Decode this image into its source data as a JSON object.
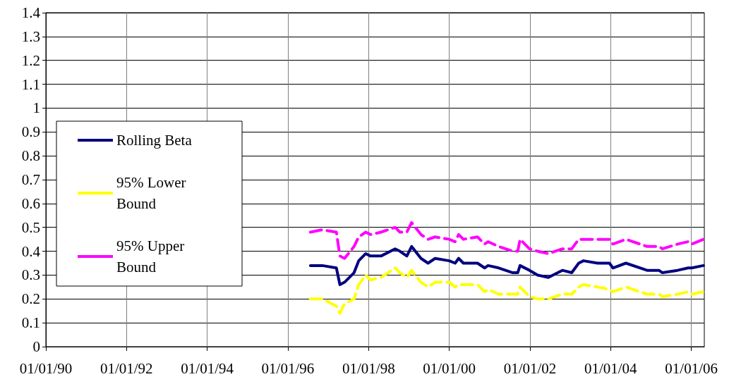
{
  "chart_data": {
    "type": "line",
    "xlim": [
      "1990-01-01",
      "2006-04-28"
    ],
    "xticks": [
      {
        "value": "1990-01-01",
        "label": "01/01/90"
      },
      {
        "value": "1992-01-01",
        "label": "01/01/92"
      },
      {
        "value": "1994-01-01",
        "label": "01/01/94"
      },
      {
        "value": "1996-01-01",
        "label": "01/01/96"
      },
      {
        "value": "1998-01-01",
        "label": "01/01/98"
      },
      {
        "value": "2000-01-01",
        "label": "01/01/00"
      },
      {
        "value": "2002-01-01",
        "label": "01/01/02"
      },
      {
        "value": "2004-01-01",
        "label": "01/01/04"
      },
      {
        "value": "2006-01-01",
        "label": "01/01/06"
      }
    ],
    "ylim": [
      0,
      1.4
    ],
    "yticks": [
      0,
      0.1,
      0.2,
      0.3,
      0.4,
      0.5,
      0.6,
      0.7,
      0.8,
      0.9,
      1,
      1.1,
      1.2,
      1.3,
      1.4
    ],
    "grid": true,
    "legend": "left",
    "marker": "none",
    "x": [
      "1996-07-23",
      "1996-11-07",
      "1997-03-15",
      "1997-04-16",
      "1997-05-28",
      "1997-08-22",
      "1997-10-03",
      "1997-12-06",
      "1998-01-18",
      "1998-04-23",
      "1998-08-29",
      "1998-10-11",
      "1998-12-13",
      "1999-01-25",
      "1999-04-20",
      "1999-06-23",
      "1999-08-26",
      "2000-01-01",
      "2000-02-23",
      "2000-03-26",
      "2000-05-08",
      "2000-09-13",
      "2000-11-16",
      "2000-12-17",
      "2001-03-24",
      "2001-07-29",
      "2001-09-12",
      "2001-10-03",
      "2001-12-27",
      "2002-03-12",
      "2002-06-16",
      "2002-10-21",
      "2003-01-14",
      "2003-03-18",
      "2003-04-30",
      "2003-09-05",
      "2003-12-21",
      "2004-01-22",
      "2004-05-18",
      "2004-11-26",
      "2005-03-13",
      "2005-04-14",
      "2005-08-30",
      "2005-12-03",
      "2006-01-05",
      "2006-04-20"
    ],
    "series": [
      {
        "name": "Rolling Beta",
        "color": "#000080",
        "line_style": "solid",
        "values": [
          0.34,
          0.34,
          0.33,
          0.26,
          0.27,
          0.31,
          0.36,
          0.39,
          0.38,
          0.38,
          0.41,
          0.4,
          0.38,
          0.42,
          0.37,
          0.35,
          0.37,
          0.36,
          0.35,
          0.37,
          0.35,
          0.35,
          0.33,
          0.34,
          0.33,
          0.31,
          0.31,
          0.34,
          0.32,
          0.3,
          0.29,
          0.32,
          0.31,
          0.35,
          0.36,
          0.35,
          0.35,
          0.33,
          0.35,
          0.32,
          0.32,
          0.31,
          0.32,
          0.33,
          0.33,
          0.34
        ]
      },
      {
        "name": "95% Lower Bound",
        "color": "#ffff00",
        "line_style": "dashed",
        "values": [
          0.2,
          0.2,
          0.17,
          0.14,
          0.18,
          0.2,
          0.26,
          0.3,
          0.28,
          0.29,
          0.33,
          0.31,
          0.29,
          0.32,
          0.27,
          0.25,
          0.27,
          0.27,
          0.25,
          0.26,
          0.26,
          0.26,
          0.23,
          0.24,
          0.22,
          0.22,
          0.22,
          0.25,
          0.21,
          0.2,
          0.2,
          0.22,
          0.22,
          0.25,
          0.26,
          0.25,
          0.24,
          0.23,
          0.25,
          0.22,
          0.22,
          0.21,
          0.22,
          0.23,
          0.22,
          0.23
        ]
      },
      {
        "name": "95% Upper Bound",
        "color": "#ff00ff",
        "line_style": "dashed",
        "values": [
          0.48,
          0.49,
          0.48,
          0.38,
          0.37,
          0.42,
          0.46,
          0.48,
          0.47,
          0.48,
          0.5,
          0.48,
          0.48,
          0.52,
          0.47,
          0.45,
          0.46,
          0.45,
          0.44,
          0.47,
          0.45,
          0.46,
          0.43,
          0.44,
          0.42,
          0.4,
          0.4,
          0.45,
          0.41,
          0.4,
          0.39,
          0.41,
          0.41,
          0.45,
          0.45,
          0.45,
          0.45,
          0.43,
          0.45,
          0.42,
          0.42,
          0.41,
          0.43,
          0.44,
          0.43,
          0.45
        ]
      }
    ]
  }
}
